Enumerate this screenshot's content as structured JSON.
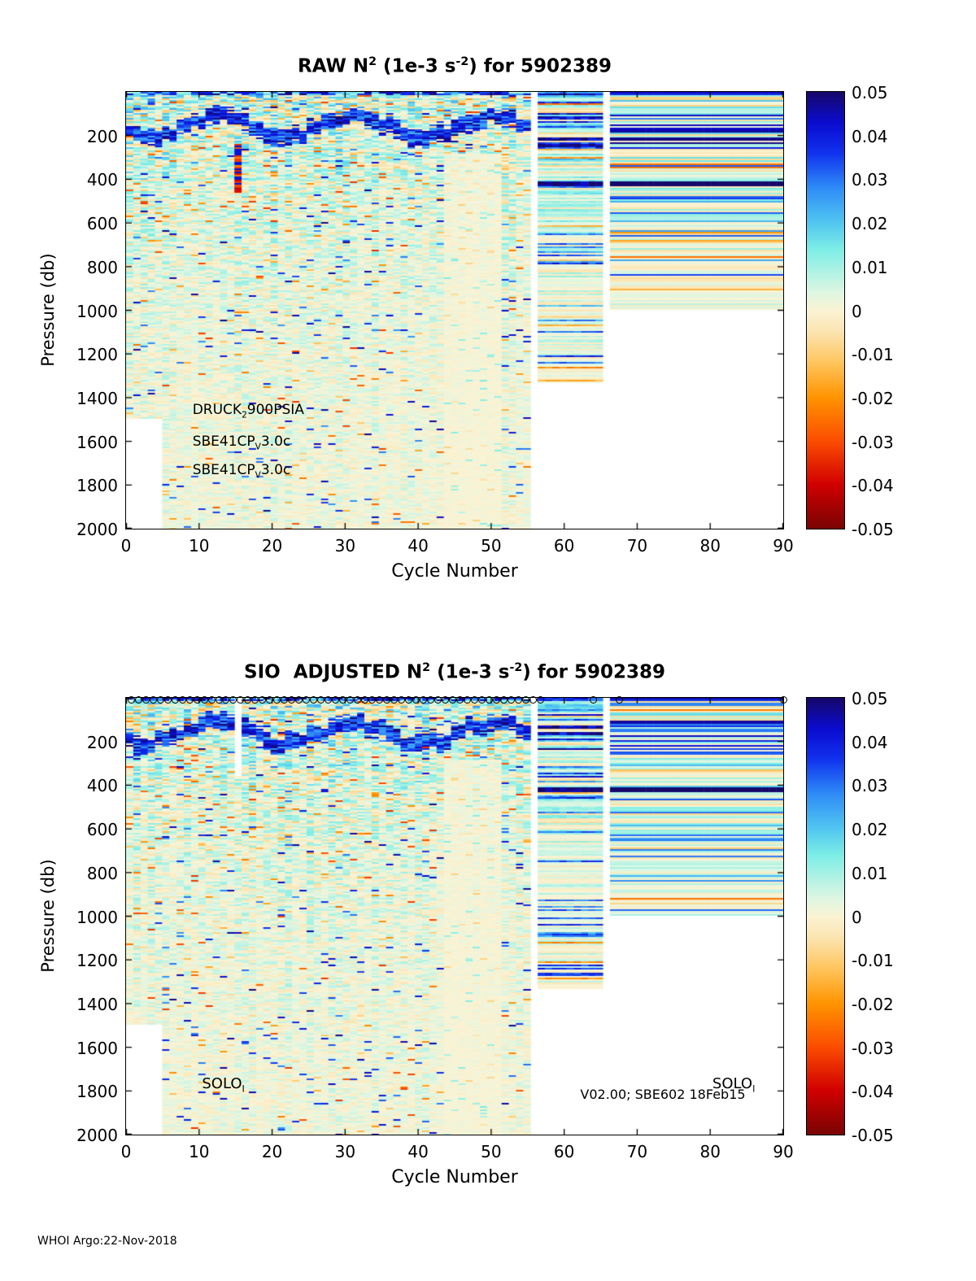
{
  "figure": {
    "footer": "WHOI Argo:22-Nov-2018",
    "background": "#ffffff"
  },
  "colormap": {
    "zlim": [
      -0.05,
      0.05
    ],
    "stops": [
      {
        "v": -0.05,
        "c": "#7a0403"
      },
      {
        "v": -0.04,
        "c": "#d10000"
      },
      {
        "v": -0.03,
        "c": "#fb4d00"
      },
      {
        "v": -0.02,
        "c": "#ff9400"
      },
      {
        "v": -0.012,
        "c": "#ffc55e"
      },
      {
        "v": -0.005,
        "c": "#fbe4b0"
      },
      {
        "v": 0.0,
        "c": "#faf3d4"
      },
      {
        "v": 0.004,
        "c": "#dff6e2"
      },
      {
        "v": 0.009,
        "c": "#aef2e4"
      },
      {
        "v": 0.014,
        "c": "#7deee6"
      },
      {
        "v": 0.02,
        "c": "#52c7f0"
      },
      {
        "v": 0.028,
        "c": "#2f8df7"
      },
      {
        "v": 0.036,
        "c": "#1133ee"
      },
      {
        "v": 0.043,
        "c": "#0b0bd0"
      },
      {
        "v": 0.05,
        "c": "#16086b"
      }
    ]
  },
  "panels": [
    {
      "title_parts": [
        {
          "t": "RAW N"
        },
        {
          "t": "2",
          "sup": true
        },
        {
          "t": " (1e-3 s"
        },
        {
          "t": "-2",
          "sup": true
        },
        {
          "t": ") for 5902389"
        }
      ],
      "xlabel": "Cycle Number",
      "ylabel": "Pressure (db)",
      "x_ticks": [
        0,
        10,
        20,
        30,
        40,
        50,
        60,
        70,
        80,
        90
      ],
      "y_ticks": [
        200,
        400,
        600,
        800,
        1000,
        1200,
        1400,
        1600,
        1800,
        2000
      ],
      "colorbar_ticks": [
        "0.05",
        "0.04",
        "0.03",
        "0.02",
        "0.01",
        "0",
        "-0.01",
        "-0.02",
        "-0.03",
        "-0.04",
        "-0.05"
      ],
      "annotations": [
        {
          "parts": [
            {
              "t": "DRUCK"
            },
            {
              "t": "2",
              "sub": true
            },
            {
              "t": "900PSIA"
            }
          ],
          "cycle": 9.1,
          "db": 1460,
          "size": 17
        },
        {
          "parts": [
            {
              "t": "SBE41CP"
            },
            {
              "t": "V",
              "sub": true
            },
            {
              "t": "3.0c"
            }
          ],
          "cycle": 9.1,
          "db": 1605,
          "size": 17
        },
        {
          "parts": [
            {
              "t": "SBE41CP"
            },
            {
              "t": "V",
              "sub": true
            },
            {
              "t": "3.0c"
            }
          ],
          "cycle": 9.1,
          "db": 1735,
          "size": 17
        }
      ]
    },
    {
      "title_parts": [
        {
          "t": "SIO  ADJUSTED N"
        },
        {
          "t": "2",
          "sup": true
        },
        {
          "t": " (1e-3 s"
        },
        {
          "t": "-2",
          "sup": true
        },
        {
          "t": ") for 5902389"
        }
      ],
      "xlabel": "Cycle Number",
      "ylabel": "Pressure (db)",
      "x_ticks": [
        0,
        10,
        20,
        30,
        40,
        50,
        60,
        70,
        80,
        90
      ],
      "y_ticks": [
        200,
        400,
        600,
        800,
        1000,
        1200,
        1400,
        1600,
        1800,
        2000
      ],
      "colorbar_ticks": [
        "0.05",
        "0.04",
        "0.03",
        "0.02",
        "0.01",
        "0",
        "-0.01",
        "-0.02",
        "-0.03",
        "-0.04",
        "-0.05"
      ],
      "annotations": [
        {
          "parts": [
            {
              "t": "SOLO"
            },
            {
              "t": "I",
              "sub": true
            }
          ],
          "cycle": 10.4,
          "db": 1770,
          "size": 18
        },
        {
          "parts": [
            {
              "t": "V02.00; SBE602 18Feb15"
            }
          ],
          "cycle": 62.2,
          "db": 1818,
          "size": 16
        },
        {
          "parts": [
            {
              "t": "SOLO"
            },
            {
              "t": "I",
              "sub": true
            }
          ],
          "cycle": 80.3,
          "db": 1770,
          "size": 18
        }
      ]
    }
  ],
  "chart_data": [
    {
      "type": "heatmap",
      "title": "RAW N^2 (1e-3 s^-2) for 5902389",
      "xlabel": "Cycle Number",
      "ylabel": "Pressure (db)",
      "xlim": [
        0,
        90
      ],
      "ylim": [
        2000,
        0
      ],
      "y_axis_reversed": true,
      "zlim": [
        -0.05,
        0.05
      ],
      "grid": false,
      "colorbar_position": "right",
      "seed": 20181122,
      "pycnocline_band": {
        "center_db": 160,
        "wiggle_db": 46,
        "halfwidth_db": 34,
        "value_range": [
          0.023,
          0.05
        ],
        "description": "dark blue high-N2 band near 100-240 db"
      },
      "background_value_range": [
        -0.008,
        0.016
      ],
      "background_description": "pale cyan / cream speckle, amplitude decays with depth, scattered orange negative specks",
      "depth_limits": [
        {
          "c0": 0,
          "c1": 5,
          "max_db": 1500
        },
        {
          "c0": 5,
          "c1": 57,
          "max_db": 2000
        },
        {
          "c0": 57,
          "c1": 67,
          "max_db": 1330
        },
        {
          "c0": 67,
          "c1": 91,
          "max_db": 1000
        }
      ],
      "row_striped_from_cycle": 57,
      "uniform_rows_from_cycle": 67,
      "dark_row_db": 420,
      "gap_columns": [
        {
          "c0": 56.2,
          "c1": 57.0,
          "p0": 0,
          "p1": 2000
        },
        {
          "c0": 66.2,
          "c1": 67.0,
          "p0": 0,
          "p1": 2000
        }
      ],
      "pale_column_region": {
        "c0": 44,
        "c1": 51,
        "below_db": 280,
        "factor": 0.3
      },
      "special_column": {
        "cycle": 15,
        "p0": 240,
        "p1": 460
      },
      "instrument_annotations": [
        "DRUCK_2 900PSIA",
        "SBE41CP_V 3.0c",
        "SBE41CP_V 3.0c"
      ]
    },
    {
      "type": "heatmap",
      "title": "SIO ADJUSTED N^2 (1e-3 s^-2) for 5902389",
      "xlabel": "Cycle Number",
      "ylabel": "Pressure (db)",
      "xlim": [
        0,
        90
      ],
      "ylim": [
        2000,
        0
      ],
      "y_axis_reversed": true,
      "zlim": [
        -0.05,
        0.05
      ],
      "grid": false,
      "colorbar_position": "right",
      "seed": 5902389,
      "pycnocline_band": {
        "center_db": 160,
        "wiggle_db": 46,
        "halfwidth_db": 34,
        "value_range": [
          0.023,
          0.05
        ],
        "description": "dark blue high-N2 band near 100-240 db"
      },
      "background_value_range": [
        -0.008,
        0.016
      ],
      "background_description": "pale cyan / cream speckle, amplitude decays with depth, scattered orange negative specks",
      "depth_limits": [
        {
          "c0": 0,
          "c1": 5,
          "max_db": 1500
        },
        {
          "c0": 5,
          "c1": 57,
          "max_db": 2000
        },
        {
          "c0": 57,
          "c1": 67,
          "max_db": 1330
        },
        {
          "c0": 67,
          "c1": 91,
          "max_db": 1000
        }
      ],
      "row_striped_from_cycle": 57,
      "uniform_rows_from_cycle": 67,
      "dark_row_db": 420,
      "gap_columns": [
        {
          "c0": 56.2,
          "c1": 57.0,
          "p0": 0,
          "p1": 2000
        },
        {
          "c0": 66.2,
          "c1": 67.0,
          "p0": 0,
          "p1": 2000
        },
        {
          "c0": 15.2,
          "c1": 16.0,
          "p0": 0,
          "p1": 360
        }
      ],
      "pale_column_region": {
        "c0": 44,
        "c1": 51,
        "below_db": 280,
        "factor": 0.3
      },
      "surface_markers": {
        "symbol": "o",
        "dense_start": 0.7,
        "dense_end": 57.4,
        "step": 1.0,
        "extra": [
          64,
          67.5,
          90
        ]
      },
      "instrument_annotations": [
        "SOLO_I",
        "V02.00; SBE602 18Feb15",
        "SOLO_I"
      ]
    }
  ]
}
